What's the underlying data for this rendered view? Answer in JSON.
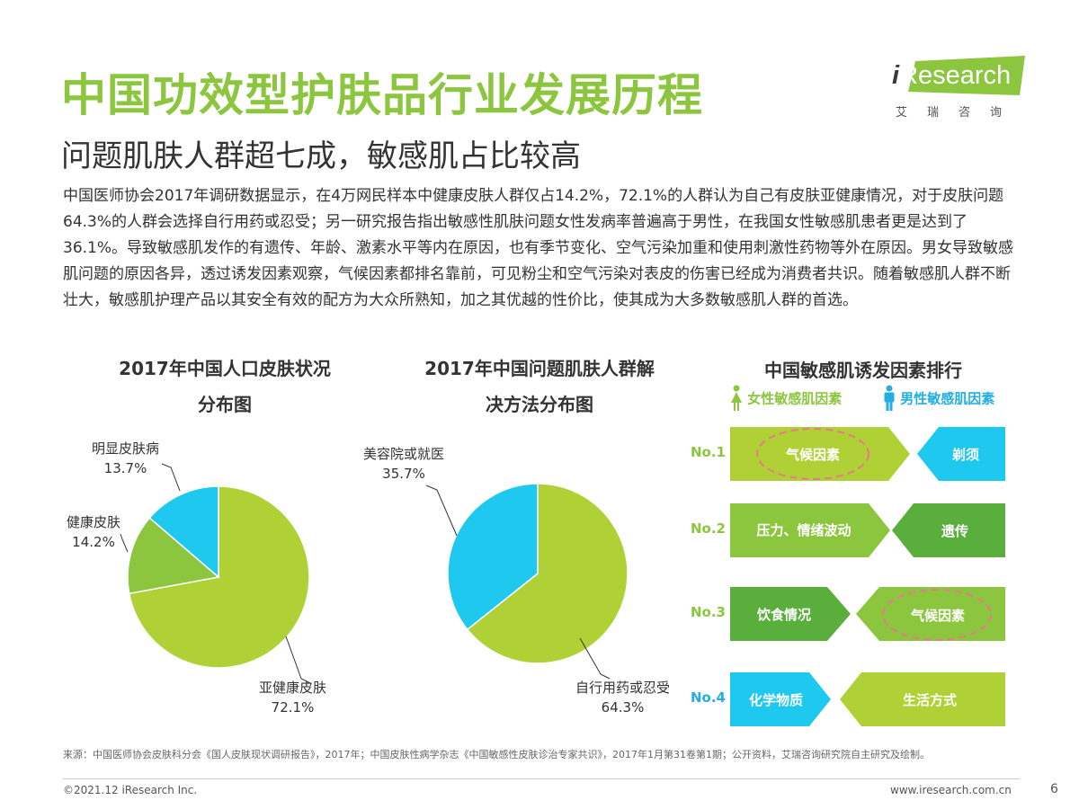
{
  "header": {
    "title": "中国功效型护肤品行业发展历程",
    "subtitle": "问题肌肤人群超七成，敏感肌占比较高",
    "logo_i": "i",
    "logo_text": "Research",
    "logo_sub": "艾瑞咨询"
  },
  "body_text": "中国医师协会2017年调研数据显示，在4万网民样本中健康皮肤人群仅占14.2%，72.1%的人群认为自己有皮肤亚健康情况，对于皮肤问题64.3%的人群会选择自行用药或忍受；另一研究报告指出敏感性肌肤问题女性发病率普遍高于男性，在我国女性敏感肌患者更是达到了36.1%。导致敏感肌发作的有遗传、年龄、激素水平等内在原因，也有季节变化、空气污染加重和使用刺激性药物等外在原因。男女导致敏感肌问题的原因各异，透过诱发因素观察，气候因素都排名靠前，可见粉尘和空气污染对表皮的伤害已经成为消费者共识。随着敏感肌人群不断壮大，敏感肌护理产品以其安全有效的配方为大众所熟知，加之其优越的性价比，使其成为大多数敏感肌人群的首选。",
  "chart_data": [
    {
      "type": "pie",
      "title": "2017年中国人口皮肤状况分布图",
      "title_line1": "2017年中国人口皮肤状况",
      "title_line2": "分布图",
      "slices": [
        {
          "label": "亚健康皮肤",
          "value": 72.1,
          "value_label": "72.1%",
          "color": "#afd136"
        },
        {
          "label": "健康皮肤",
          "value": 14.2,
          "value_label": "14.2%",
          "color": "#8cc63f"
        },
        {
          "label": "明显皮肤病",
          "value": 13.7,
          "value_label": "13.7%",
          "color": "#1ec8ef"
        }
      ]
    },
    {
      "type": "pie",
      "title": "2017年中国问题肌肤人群解决方法分布图",
      "title_line1": "2017年中国问题肌肤人群解",
      "title_line2": "决方法分布图",
      "slices": [
        {
          "label": "自行用药或忍受",
          "value": 64.3,
          "value_label": "64.3%",
          "color": "#afd136"
        },
        {
          "label": "美容院或就医",
          "value": 35.7,
          "value_label": "35.7%",
          "color": "#1ec8ef"
        }
      ]
    }
  ],
  "ranking": {
    "title": "中国敏感肌诱发因素排行",
    "legend_female": "女性敏感肌因素",
    "legend_male": "男性敏感肌因素",
    "rows": [
      {
        "rank": "No.1",
        "female": "气候因素",
        "male": "剃须"
      },
      {
        "rank": "No.2",
        "female": "压力、情绪波动",
        "male": "遗传"
      },
      {
        "rank": "No.3",
        "female": "饮食情况",
        "male": "气候因素"
      },
      {
        "rank": "No.4",
        "female": "化学物质",
        "male": "生活方式"
      }
    ]
  },
  "footer": {
    "source": "来源：中国医师协会皮肤科分会《国人皮肤现状调研报告》，2017年；中国皮肤性病学杂志《中国敏感性皮肤诊治专家共识》，2017年1月第31卷第1期；公开资料，艾瑞咨询研究院自主研究及绘制。",
    "copyright": "©2021.12 iResearch Inc.",
    "website": "www.iresearch.com.cn",
    "page": "6"
  }
}
